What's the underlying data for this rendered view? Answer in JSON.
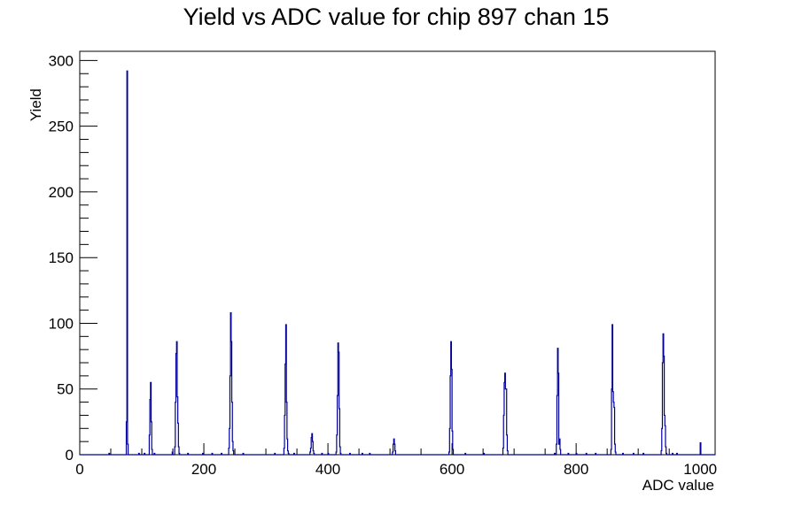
{
  "chart_data": {
    "type": "bar",
    "title": "Yield vs ADC value for chip 897 chan 15",
    "xlabel": "ADC value",
    "ylabel": "Yield",
    "xlim": [
      0,
      1024
    ],
    "ylim": [
      0,
      307
    ],
    "x_ticks": [
      0,
      200,
      400,
      600,
      800,
      1000
    ],
    "y_ticks": [
      0,
      50,
      100,
      150,
      200,
      250,
      300
    ],
    "grid": false,
    "legend": "none",
    "line_color": "#000099",
    "bins": [
      [
        47,
        1
      ],
      [
        75,
        25
      ],
      [
        76,
        292
      ],
      [
        77,
        8
      ],
      [
        95,
        1
      ],
      [
        104,
        1
      ],
      [
        112,
        15
      ],
      [
        113,
        42
      ],
      [
        114,
        55
      ],
      [
        115,
        25
      ],
      [
        116,
        4
      ],
      [
        120,
        1
      ],
      [
        149,
        2
      ],
      [
        153,
        6
      ],
      [
        154,
        40
      ],
      [
        155,
        77
      ],
      [
        156,
        86
      ],
      [
        157,
        44
      ],
      [
        158,
        24
      ],
      [
        159,
        6
      ],
      [
        160,
        1
      ],
      [
        174,
        1
      ],
      [
        198,
        1
      ],
      [
        213,
        1
      ],
      [
        228,
        1
      ],
      [
        240,
        5
      ],
      [
        241,
        20
      ],
      [
        242,
        60
      ],
      [
        243,
        108
      ],
      [
        244,
        86
      ],
      [
        245,
        40
      ],
      [
        246,
        10
      ],
      [
        247,
        3
      ],
      [
        263,
        1
      ],
      [
        314,
        1
      ],
      [
        329,
        5
      ],
      [
        330,
        30
      ],
      [
        331,
        69
      ],
      [
        332,
        99
      ],
      [
        333,
        40
      ],
      [
        334,
        12
      ],
      [
        335,
        3
      ],
      [
        336,
        1
      ],
      [
        345,
        1
      ],
      [
        371,
        2
      ],
      [
        372,
        5
      ],
      [
        373,
        13
      ],
      [
        374,
        16
      ],
      [
        375,
        10
      ],
      [
        376,
        3
      ],
      [
        377,
        1
      ],
      [
        390,
        1
      ],
      [
        400,
        1
      ],
      [
        413,
        2
      ],
      [
        414,
        15
      ],
      [
        415,
        45
      ],
      [
        416,
        85
      ],
      [
        417,
        78
      ],
      [
        418,
        35
      ],
      [
        419,
        6
      ],
      [
        420,
        1
      ],
      [
        435,
        1
      ],
      [
        455,
        1
      ],
      [
        467,
        1
      ],
      [
        504,
        2
      ],
      [
        505,
        8
      ],
      [
        506,
        12
      ],
      [
        507,
        8
      ],
      [
        508,
        3
      ],
      [
        595,
        2
      ],
      [
        596,
        20
      ],
      [
        597,
        60
      ],
      [
        598,
        86
      ],
      [
        599,
        65
      ],
      [
        600,
        18
      ],
      [
        601,
        4
      ],
      [
        621,
        1
      ],
      [
        651,
        1
      ],
      [
        682,
        5
      ],
      [
        683,
        30
      ],
      [
        684,
        55
      ],
      [
        685,
        62
      ],
      [
        686,
        50
      ],
      [
        687,
        50
      ],
      [
        688,
        15
      ],
      [
        689,
        3
      ],
      [
        765,
        1
      ],
      [
        768,
        8
      ],
      [
        769,
        45
      ],
      [
        770,
        81
      ],
      [
        771,
        62
      ],
      [
        772,
        8
      ],
      [
        773,
        12
      ],
      [
        774,
        4
      ],
      [
        787,
        1
      ],
      [
        800,
        1
      ],
      [
        816,
        1
      ],
      [
        831,
        1
      ],
      [
        856,
        4
      ],
      [
        857,
        50
      ],
      [
        858,
        99
      ],
      [
        859,
        48
      ],
      [
        860,
        40
      ],
      [
        861,
        36
      ],
      [
        862,
        8
      ],
      [
        863,
        2
      ],
      [
        875,
        1
      ],
      [
        892,
        1
      ],
      [
        908,
        1
      ],
      [
        937,
        3
      ],
      [
        938,
        20
      ],
      [
        939,
        70
      ],
      [
        940,
        92
      ],
      [
        941,
        75
      ],
      [
        942,
        30
      ],
      [
        943,
        22
      ],
      [
        944,
        6
      ],
      [
        945,
        1
      ],
      [
        955,
        1
      ],
      [
        962,
        1
      ],
      [
        1000,
        9
      ]
    ]
  }
}
